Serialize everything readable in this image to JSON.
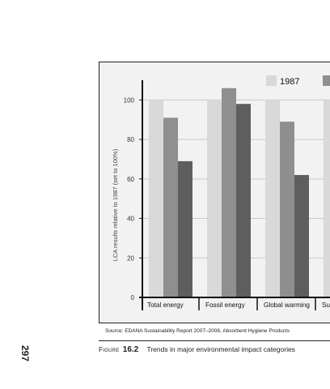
{
  "page": {
    "number": "297",
    "source": "Source:  EDANA Sustainability Report 2007–2008, Absorbent Hygiene Products",
    "caption_label": "Figure",
    "caption_number": "16.2",
    "caption_text": "Trends in major environmental impact categories"
  },
  "chart_data": {
    "type": "bar",
    "title": "",
    "xlabel": "",
    "ylabel": "LCA results relative to 1987 (set to 100%)",
    "ylim": [
      0,
      110
    ],
    "yticks": [
      0,
      20,
      40,
      60,
      80,
      100
    ],
    "categories": [
      "Total energy",
      "Fossil energy",
      "Global warming",
      "Su"
    ],
    "series": [
      {
        "name": "1987",
        "color": "#d9d9d9",
        "values": [
          100,
          100,
          100,
          100
        ]
      },
      {
        "name": "",
        "color": "#8f8f8f",
        "values": [
          91,
          106,
          89,
          null
        ]
      },
      {
        "name": "",
        "color": "#5e5e5e",
        "values": [
          69,
          98,
          62,
          null
        ]
      }
    ],
    "grid": true,
    "legend": "top-right",
    "background": "#f2f2f2"
  }
}
